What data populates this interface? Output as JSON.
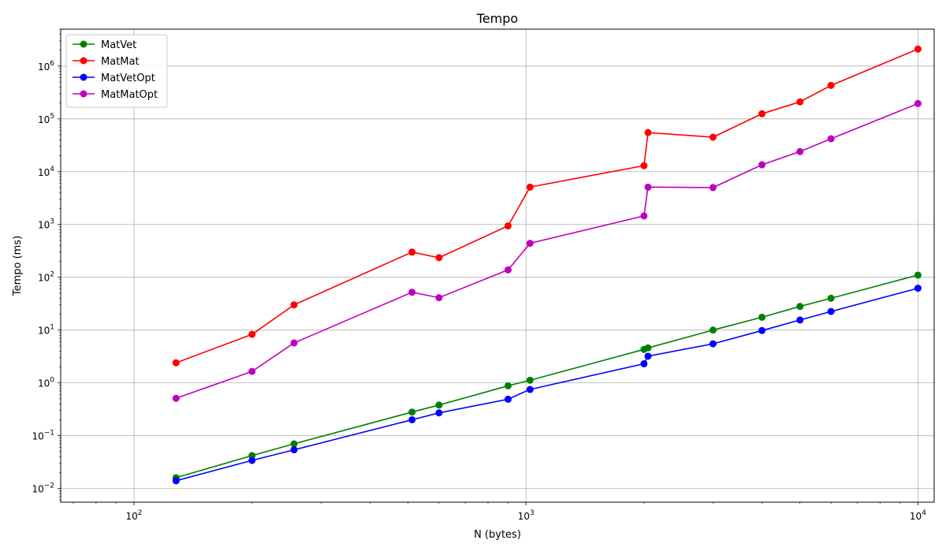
{
  "chart_data": {
    "type": "line",
    "title": "Tempo",
    "xlabel": "N (bytes)",
    "ylabel": "Tempo (ms)",
    "xscale": "log",
    "yscale": "log",
    "xlim": [
      65,
      11000
    ],
    "ylim": [
      0.0055,
      5000000
    ],
    "xticks": [
      {
        "value": 100,
        "base": "10",
        "exp": "2"
      },
      {
        "value": 1000,
        "base": "10",
        "exp": "3"
      },
      {
        "value": 10000,
        "base": "10",
        "exp": "4"
      }
    ],
    "yticks": [
      {
        "value": 0.01,
        "base": "10",
        "exp": "−2"
      },
      {
        "value": 0.1,
        "base": "10",
        "exp": "−1"
      },
      {
        "value": 1,
        "base": "10",
        "exp": "0"
      },
      {
        "value": 10,
        "base": "10",
        "exp": "1"
      },
      {
        "value": 100,
        "base": "10",
        "exp": "2"
      },
      {
        "value": 1000,
        "base": "10",
        "exp": "3"
      },
      {
        "value": 10000,
        "base": "10",
        "exp": "4"
      },
      {
        "value": 100000,
        "base": "10",
        "exp": "5"
      },
      {
        "value": 1000000,
        "base": "10",
        "exp": "6"
      }
    ],
    "grid": true,
    "legend_position": "top-left",
    "x": [
      128,
      200,
      256,
      512,
      600,
      900,
      1024,
      2000,
      2048,
      3000,
      4000,
      5000,
      6000,
      10000
    ],
    "series": [
      {
        "name": "MatVet",
        "color": "#008000",
        "values": [
          0.016,
          0.042,
          0.07,
          0.28,
          0.38,
          0.88,
          1.12,
          4.3,
          4.6,
          10,
          17.5,
          28,
          40,
          110
        ]
      },
      {
        "name": "MatMat",
        "color": "#ff0000",
        "values": [
          2.4,
          8.3,
          30,
          300,
          235,
          940,
          5100,
          13000,
          55000,
          45000,
          125000,
          210000,
          430000,
          2100000
        ]
      },
      {
        "name": "MatVetOpt",
        "color": "#0000ff",
        "values": [
          0.014,
          0.034,
          0.054,
          0.2,
          0.27,
          0.49,
          0.75,
          2.3,
          3.2,
          5.5,
          9.8,
          15.5,
          22.5,
          62
        ]
      },
      {
        "name": "MatMatOpt",
        "color": "#bf00bf",
        "values": [
          0.51,
          1.65,
          5.7,
          52,
          41,
          138,
          440,
          1450,
          5100,
          5000,
          13500,
          24000,
          42000,
          195000
        ]
      }
    ]
  }
}
